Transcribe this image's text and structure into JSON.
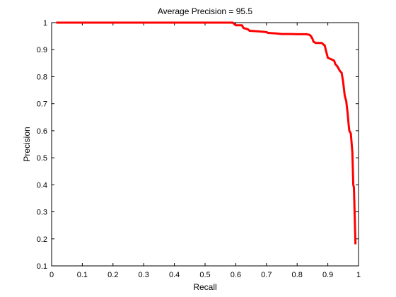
{
  "chart_data": {
    "type": "line",
    "title": "Average Precision = 95.5",
    "xlabel": "Recall",
    "ylabel": "Precision",
    "xlim": [
      0,
      1
    ],
    "ylim": [
      0.1,
      1
    ],
    "grid": false,
    "xticks": [
      0,
      0.1,
      0.2,
      0.3,
      0.4,
      0.5,
      0.6,
      0.7,
      0.8,
      0.9,
      1
    ],
    "xtick_labels": [
      "0",
      "0.1",
      "0.2",
      "0.3",
      "0.4",
      "0.5",
      "0.6",
      "0.7",
      "0.8",
      "0.9",
      "1"
    ],
    "yticks": [
      0.1,
      0.2,
      0.3,
      0.4,
      0.5,
      0.6,
      0.7,
      0.8,
      0.9,
      1
    ],
    "ytick_labels": [
      "0.1",
      "0.2",
      "0.3",
      "0.4",
      "0.5",
      "0.6",
      "0.7",
      "0.8",
      "0.9",
      "1"
    ],
    "series": [
      {
        "color": "#ff0000",
        "x": [
          0.015,
          0.59,
          0.6,
          0.62,
          0.625,
          0.64,
          0.645,
          0.67,
          0.7,
          0.705,
          0.73,
          0.75,
          0.78,
          0.8,
          0.83,
          0.84,
          0.845,
          0.85,
          0.853,
          0.86,
          0.88,
          0.89,
          0.893,
          0.9,
          0.91,
          0.92,
          0.925,
          0.93,
          0.94,
          0.945,
          0.95,
          0.953,
          0.955,
          0.96,
          0.962,
          0.965,
          0.968,
          0.97,
          0.975,
          0.98,
          0.983,
          0.985,
          0.99
        ],
        "y": [
          1.0,
          1.0,
          0.99,
          0.99,
          0.98,
          0.975,
          0.97,
          0.968,
          0.965,
          0.962,
          0.96,
          0.958,
          0.958,
          0.957,
          0.957,
          0.955,
          0.95,
          0.94,
          0.93,
          0.925,
          0.925,
          0.915,
          0.9,
          0.87,
          0.865,
          0.86,
          0.845,
          0.84,
          0.82,
          0.815,
          0.78,
          0.75,
          0.73,
          0.71,
          0.69,
          0.66,
          0.62,
          0.6,
          0.59,
          0.52,
          0.4,
          0.39,
          0.18
        ]
      }
    ]
  }
}
